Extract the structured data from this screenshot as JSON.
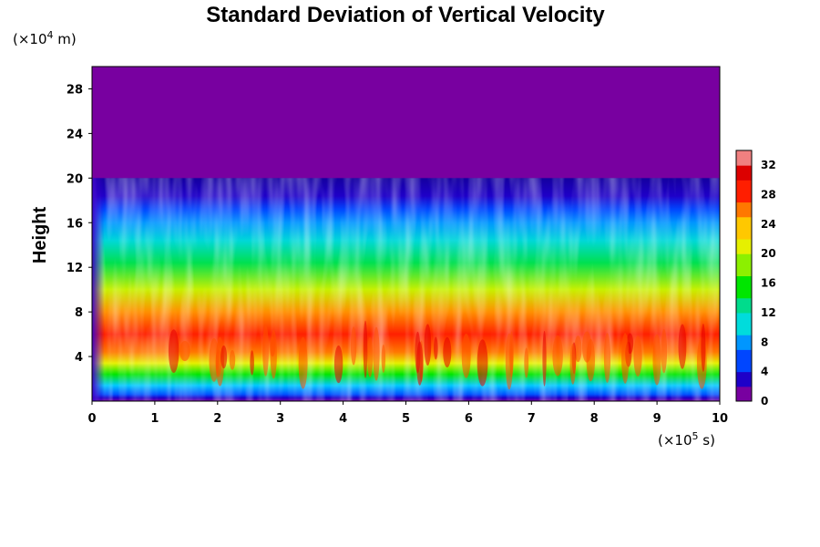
{
  "chart_data": {
    "type": "heatmap",
    "title": "Standard Deviation of Vertical Velocity",
    "ylabel": "Height",
    "y_unit": {
      "prefix": "(×10",
      "exp": "4",
      "suffix": " m)"
    },
    "x_unit": {
      "prefix": "(×10",
      "exp": "5",
      "suffix": " s)"
    },
    "xlim": [
      0,
      10
    ],
    "ylim": [
      0,
      30
    ],
    "x_ticks": [
      0,
      1,
      2,
      3,
      4,
      5,
      6,
      7,
      8,
      9,
      10
    ],
    "y_ticks": [
      4,
      8,
      12,
      16,
      20,
      24,
      28
    ],
    "colorbar": {
      "ticks": [
        0,
        4,
        8,
        12,
        16,
        20,
        24,
        28,
        32
      ],
      "range": [
        0,
        34
      ],
      "colors": [
        "#7800a0",
        "#1e00c8",
        "#0046ff",
        "#0096ff",
        "#00dcdc",
        "#00dc8c",
        "#00e600",
        "#8cf000",
        "#e6f000",
        "#ffc800",
        "#ff7800",
        "#ff1e00",
        "#dc0000",
        "#f08080"
      ]
    },
    "active_height_top": 20,
    "peak_band": [
      2,
      7
    ],
    "spinup_time": 0.2,
    "grid": false,
    "legend": "colorbar right"
  }
}
